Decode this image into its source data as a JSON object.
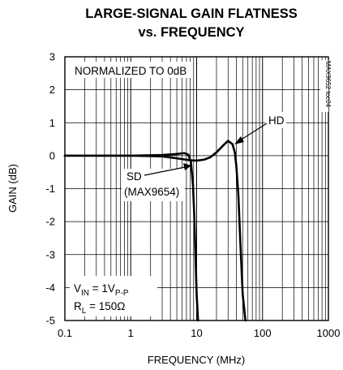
{
  "chart_data": {
    "type": "line",
    "title_lines": [
      "LARGE-SIGNAL GAIN FLATNESS",
      "vs. FREQUENCY"
    ],
    "xlabel": "FREQUENCY (MHz)",
    "ylabel": "GAIN (dB)",
    "x_scale": "log",
    "xlim": [
      0.1,
      1000
    ],
    "ylim": [
      -5,
      3
    ],
    "x_ticks": [
      0.1,
      1,
      10,
      100,
      1000
    ],
    "x_tick_labels": [
      "0.1",
      "1",
      "10",
      "100",
      "1000"
    ],
    "y_ticks": [
      3,
      2,
      1,
      0,
      -1,
      -2,
      -3,
      -4,
      -5
    ],
    "y_tick_labels": [
      "3",
      "2",
      "1",
      "0",
      "-1",
      "-2",
      "-3",
      "-4",
      "-5"
    ],
    "grid": true,
    "series": [
      {
        "name": "HD",
        "x": [
          0.1,
          1,
          3,
          5,
          8,
          10,
          13,
          16,
          20,
          25,
          30,
          35,
          38,
          40,
          43,
          46,
          50,
          55
        ],
        "y": [
          0,
          0,
          -0.02,
          -0.08,
          -0.14,
          -0.15,
          -0.12,
          -0.05,
          0.1,
          0.3,
          0.45,
          0.35,
          0.1,
          -0.3,
          -1.2,
          -2.6,
          -4.2,
          -5
        ]
      },
      {
        "name": "SD (MAX9654)",
        "x": [
          0.1,
          1,
          3,
          5,
          6.5,
          7.5,
          8.2,
          8.8,
          9.2,
          9.6,
          10,
          10.5
        ],
        "y": [
          0,
          0,
          0.02,
          0.05,
          0.08,
          0.03,
          -0.2,
          -0.9,
          -1.8,
          -3,
          -4.2,
          -5
        ]
      }
    ],
    "annotations": {
      "normalized": "NORMALIZED TO 0dB",
      "hd_label": "HD",
      "sd_label_line1": "SD",
      "sd_label_line2": "(MAX9654)",
      "vin_main": "V",
      "vin_sub": "IN",
      "vin_eq": " = 1V",
      "vin_sub2": "P-P",
      "rl_main": "R",
      "rl_sub": "L",
      "rl_eq": " = 150Ω",
      "figure_code": "MAX9652 toc04"
    }
  }
}
